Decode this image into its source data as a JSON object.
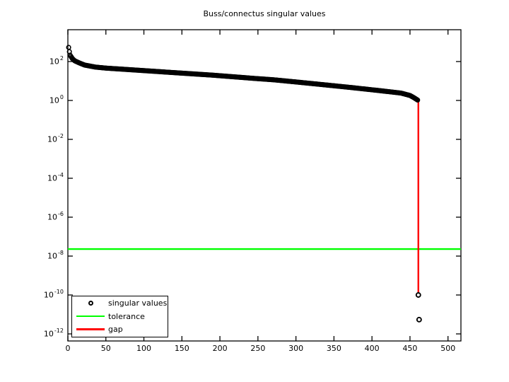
{
  "figure": {
    "background_color": "#ffffff",
    "axis_color": "#000000"
  },
  "chart_data": {
    "type": "scatter",
    "title": "Buss/connectus singular values",
    "xlabel": "",
    "ylabel": "",
    "grid": false,
    "x_axis": {
      "min": 0,
      "max": 517,
      "tick_values": [
        0,
        50,
        100,
        150,
        200,
        250,
        300,
        350,
        400,
        450,
        500
      ],
      "tick_labels": [
        "0",
        "50",
        "100",
        "150",
        "200",
        "250",
        "300",
        "350",
        "400",
        "450",
        "500"
      ]
    },
    "y_axis": {
      "scale": "log10",
      "min": 4e-13,
      "max": 4000.0,
      "tick_base": "10",
      "tick_exponents": [
        2,
        0,
        -2,
        -4,
        -6,
        -8,
        -10,
        -12
      ]
    },
    "series": [
      {
        "name": "singular values",
        "type": "scatter",
        "marker": "open-circle",
        "marker_size": 6,
        "color": "#000000",
        "n_points": 460,
        "control_points": {
          "index": [
            1,
            2,
            3,
            6,
            9,
            15,
            22,
            36,
            50,
            96,
            133,
            190,
            246,
            271,
            299,
            327,
            373,
            410,
            438,
            450,
            455,
            460
          ],
          "value": [
            533,
            323,
            212,
            140,
            109,
            85,
            66,
            52,
            46,
            35,
            28,
            20,
            13.5,
            11.5,
            9,
            7,
            4.6,
            3.2,
            2.4,
            1.8,
            1.4,
            1.05
          ]
        },
        "tail_points": [
          {
            "index": 461,
            "value": 1e-10
          },
          {
            "index": 462,
            "value": 5.4e-12
          }
        ]
      },
      {
        "name": "tolerance",
        "type": "hline",
        "color": "#00ff00",
        "value": 2.3e-08
      },
      {
        "name": "gap",
        "type": "vline",
        "color": "#ff0000",
        "index": 461,
        "value_top": 1.05,
        "value_bottom": 1e-10
      }
    ],
    "legend": {
      "position": "southwest",
      "entries": [
        {
          "label": "singular values",
          "glyph": "open-circle",
          "color": "#000000"
        },
        {
          "label": "tolerance",
          "glyph": "line",
          "color": "#00ff00"
        },
        {
          "label": "gap",
          "glyph": "line",
          "color": "#ff0000"
        }
      ]
    }
  }
}
